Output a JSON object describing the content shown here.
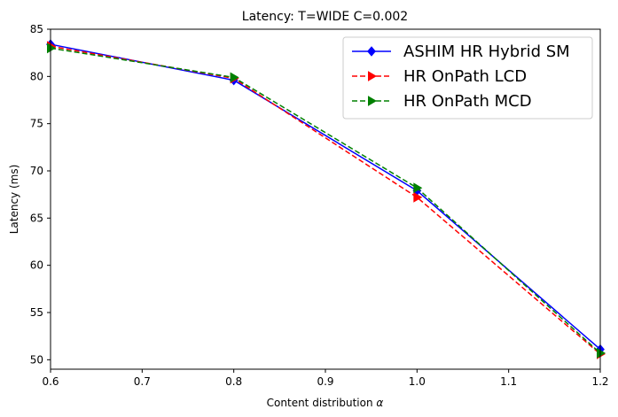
{
  "chart_data": {
    "type": "line",
    "title": "Latency: T=WIDE C=0.002",
    "xlabel": "Content distribution",
    "xlabel_symbol": "α",
    "ylabel": "Latency (ms)",
    "xlim": [
      0.6,
      1.2
    ],
    "ylim": [
      49,
      85
    ],
    "xticks": [
      0.6,
      0.7,
      0.8,
      0.9,
      1.0,
      1.1,
      1.2
    ],
    "xtick_labels": [
      "0.6",
      "0.7",
      "0.8",
      "0.9",
      "1.0",
      "1.1",
      "1.2"
    ],
    "yticks": [
      50,
      55,
      60,
      65,
      70,
      75,
      80,
      85
    ],
    "ytick_labels": [
      "50",
      "55",
      "60",
      "65",
      "70",
      "75",
      "80",
      "85"
    ],
    "grid": false,
    "legend_position": "top-right",
    "series": [
      {
        "name": "ASHIM HR Hybrid SM",
        "color": "#0000ff",
        "linestyle": "solid",
        "marker": "diamond",
        "x": [
          0.6,
          0.8,
          1.0,
          1.2
        ],
        "y": [
          83.4,
          79.6,
          67.9,
          51.1
        ]
      },
      {
        "name": "HR OnPath LCD",
        "color": "#ff0000",
        "linestyle": "dashed",
        "marker": "triangle-right",
        "x": [
          0.6,
          0.8,
          1.0,
          1.2
        ],
        "y": [
          83.2,
          79.8,
          67.2,
          50.6
        ]
      },
      {
        "name": "HR OnPath MCD",
        "color": "#008000",
        "linestyle": "dashed",
        "marker": "triangle-right",
        "x": [
          0.6,
          0.8,
          1.0,
          1.2
        ],
        "y": [
          83.0,
          79.9,
          68.2,
          50.7
        ]
      }
    ]
  }
}
